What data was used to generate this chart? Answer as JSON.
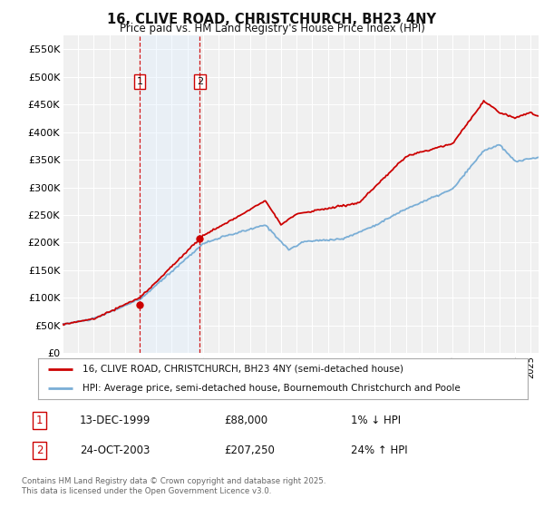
{
  "title": "16, CLIVE ROAD, CHRISTCHURCH, BH23 4NY",
  "subtitle": "Price paid vs. HM Land Registry's House Price Index (HPI)",
  "legend_line1": "16, CLIVE ROAD, CHRISTCHURCH, BH23 4NY (semi-detached house)",
  "legend_line2": "HPI: Average price, semi-detached house, Bournemouth Christchurch and Poole",
  "transaction1_date": "13-DEC-1999",
  "transaction1_price": "£88,000",
  "transaction1_hpi": "1% ↓ HPI",
  "transaction2_date": "24-OCT-2003",
  "transaction2_price": "£207,250",
  "transaction2_hpi": "24% ↑ HPI",
  "footnote": "Contains HM Land Registry data © Crown copyright and database right 2025.\nThis data is licensed under the Open Government Licence v3.0.",
  "line_color_price": "#cc0000",
  "line_color_hpi": "#7aaed6",
  "background_color": "#ffffff",
  "plot_background": "#f0f0f0",
  "grid_color": "#ffffff",
  "shade_color": "#ddeeff",
  "ylim": [
    0,
    575000
  ],
  "yticks": [
    0,
    50000,
    100000,
    150000,
    200000,
    250000,
    300000,
    350000,
    400000,
    450000,
    500000,
    550000
  ],
  "ytick_labels": [
    "£0",
    "£50K",
    "£100K",
    "£150K",
    "£200K",
    "£250K",
    "£300K",
    "£350K",
    "£400K",
    "£450K",
    "£500K",
    "£550K"
  ],
  "transaction1_x": 1999.95,
  "transaction1_y": 88000,
  "transaction2_x": 2003.8,
  "transaction2_y": 207250,
  "vline1_x": 1999.95,
  "vline2_x": 2003.8,
  "shade_xmin": 1999.95,
  "shade_xmax": 2003.8,
  "xlim_min": 1995,
  "xlim_max": 2025.5
}
